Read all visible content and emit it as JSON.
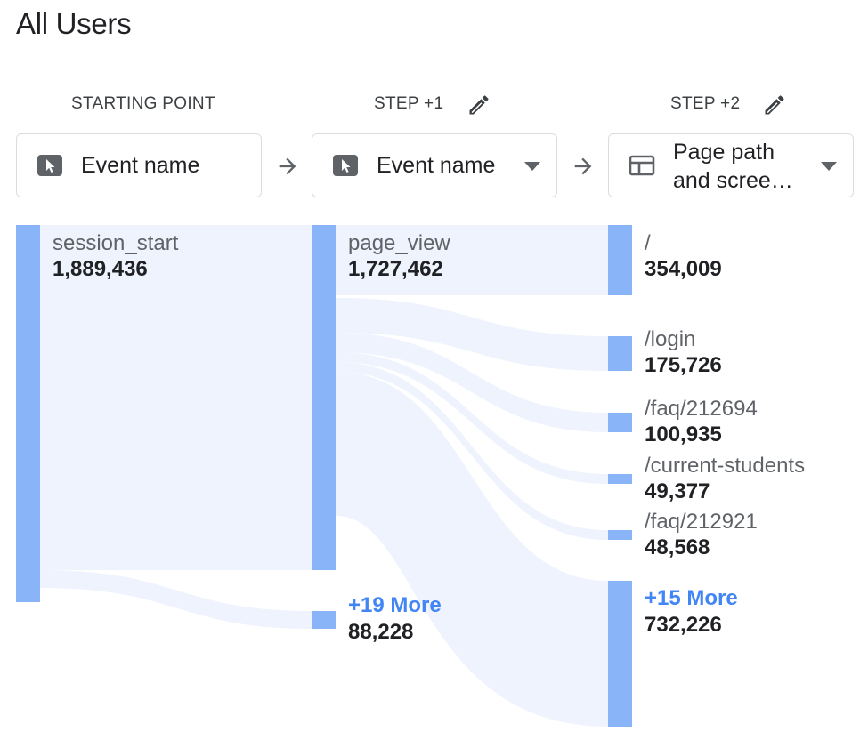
{
  "header": {
    "title": "All Users"
  },
  "columns": [
    {
      "heading": "STARTING POINT",
      "dimension": "Event name",
      "icon": "cursor-icon",
      "editable": false
    },
    {
      "heading": "STEP +1",
      "dimension": "Event name",
      "icon": "cursor-icon",
      "editable": true
    },
    {
      "heading": "STEP +2",
      "dimension": "Page path\nand scree…",
      "icon": "page-layout-icon",
      "editable": true
    }
  ],
  "nodes": {
    "start": {
      "label": "session_start",
      "value": "1,889,436"
    },
    "step1_page_view": {
      "label": "page_view",
      "value": "1,727,462"
    },
    "step1_more": {
      "label": "+19 More",
      "value": "88,228"
    },
    "step2_root": {
      "label": "/",
      "value": "354,009"
    },
    "step2_login": {
      "label": "/login",
      "value": "175,726"
    },
    "step2_faq1": {
      "label": "/faq/212694",
      "value": "100,935"
    },
    "step2_current": {
      "label": "/current-students",
      "value": "49,377"
    },
    "step2_faq2": {
      "label": "/faq/212921",
      "value": "48,568"
    },
    "step2_more": {
      "label": "+15 More",
      "value": "732,226"
    }
  },
  "colors": {
    "node": "#8ab4f8",
    "flow": "#eef3fd",
    "more_link": "#4285f4"
  }
}
